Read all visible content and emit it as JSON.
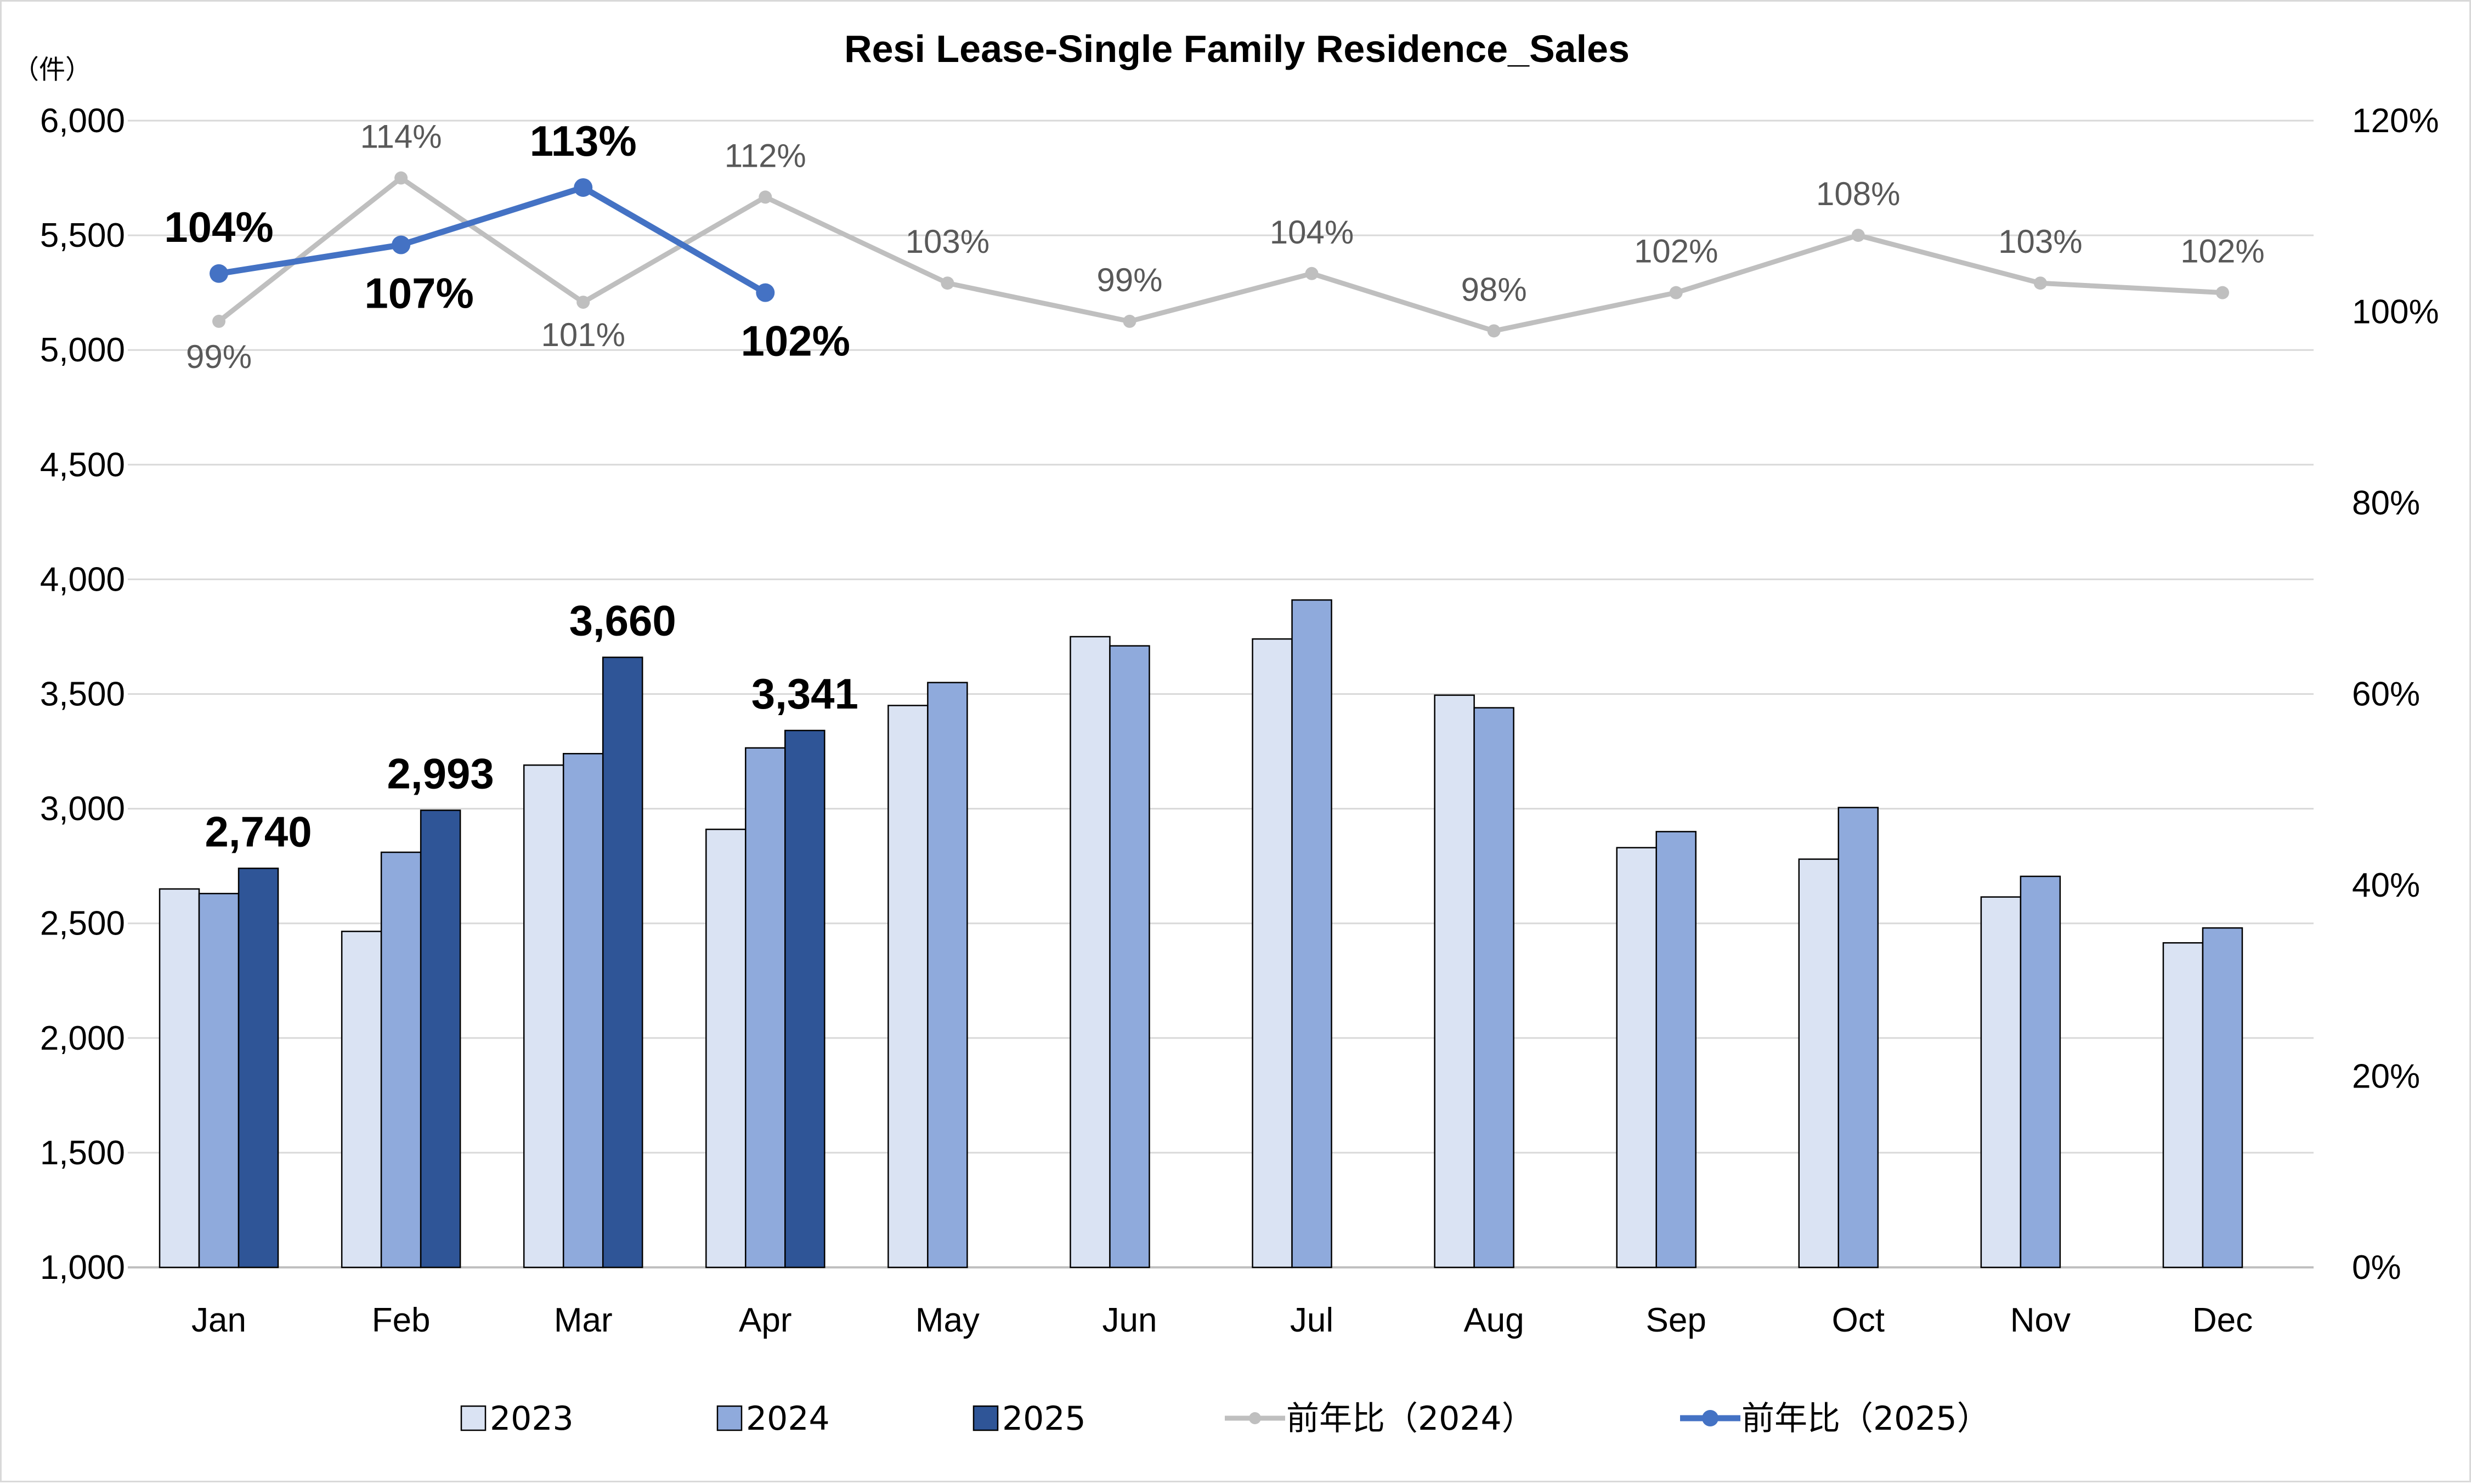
{
  "chart_data": {
    "type": "bar",
    "title": "Resi Lease-Single Family Residence_Sales",
    "y_left_unit": "（件）",
    "categories": [
      "Jan",
      "Feb",
      "Mar",
      "Apr",
      "May",
      "Jun",
      "Jul",
      "Aug",
      "Sep",
      "Oct",
      "Nov",
      "Dec"
    ],
    "y_left": {
      "min": 1000,
      "max": 6000,
      "step": 500
    },
    "y_right": {
      "min": 0,
      "max": 120,
      "step": 20
    },
    "y_left_ticks": [
      "1,000",
      "1,500",
      "2,000",
      "2,500",
      "3,000",
      "3,500",
      "4,000",
      "4,500",
      "5,000",
      "5,500",
      "6,000"
    ],
    "y_right_ticks": [
      "0%",
      "20%",
      "40%",
      "60%",
      "80%",
      "100%",
      "120%"
    ],
    "grid": true,
    "legend_position": "bottom",
    "bar_series": [
      {
        "name": "2023",
        "color": "#dae3f3",
        "values": [
          2650,
          2465,
          3190,
          2910,
          3450,
          3750,
          3740,
          3495,
          2830,
          2780,
          2615,
          2415
        ]
      },
      {
        "name": "2024",
        "color": "#8faadc",
        "values": [
          2630,
          2810,
          3240,
          3265,
          3550,
          3710,
          3910,
          3440,
          2900,
          3005,
          2705,
          2480
        ]
      },
      {
        "name": "2025",
        "color": "#2f5597",
        "values": [
          2740,
          2993,
          3660,
          3341,
          null,
          null,
          null,
          null,
          null,
          null,
          null,
          null
        ]
      }
    ],
    "bar_labels_2025": [
      "2,740",
      "2,993",
      "3,660",
      "3,341"
    ],
    "line_series": [
      {
        "name": "前年比（2024）",
        "color": "#bfbfbf",
        "values": [
          99,
          114,
          101,
          112,
          103,
          99,
          104,
          98,
          102,
          108,
          103,
          102
        ],
        "labels": [
          "99%",
          "114%",
          "101%",
          "112%",
          "103%",
          "99%",
          "104%",
          "98%",
          "102%",
          "108%",
          "103%",
          "102%"
        ]
      },
      {
        "name": "前年比（2025）",
        "color": "#4472c4",
        "values": [
          104,
          107,
          113,
          102,
          null,
          null,
          null,
          null,
          null,
          null,
          null,
          null
        ],
        "labels": [
          "104%",
          "107%",
          "113%",
          "102%"
        ]
      }
    ]
  }
}
